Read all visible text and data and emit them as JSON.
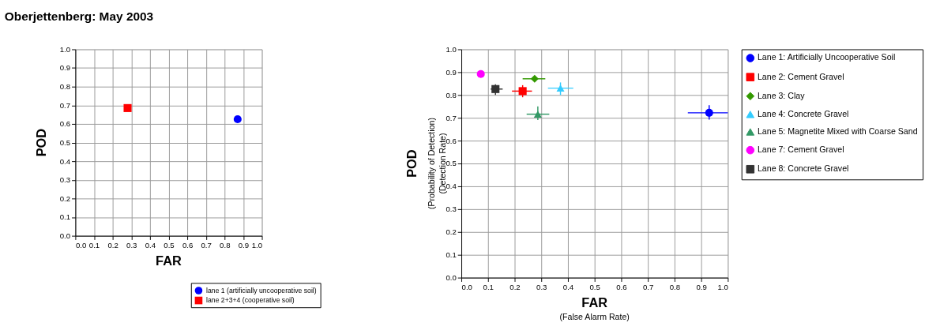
{
  "chart_data": [
    {
      "type": "scatter",
      "title": "Oberjettenberg: May 2003",
      "xlabel": "FAR",
      "ylabel": "POD",
      "xlim": [
        0,
        1
      ],
      "ylim": [
        0,
        1
      ],
      "xticks": [
        {
          "value": 0,
          "label": "0.0"
        },
        0.1,
        0.2,
        0.3,
        0.4,
        0.5,
        0.6,
        0.7,
        0.8,
        0.9,
        {
          "value": 1,
          "label": "1.0"
        }
      ],
      "yticks": [
        {
          "value": 0,
          "label": "0.0"
        },
        0.1,
        0.2,
        0.3,
        0.4,
        0.5,
        0.6,
        0.7,
        0.8,
        0.9,
        {
          "value": 1,
          "label": "1.0"
        }
      ],
      "grid": true,
      "legend": "bottom right",
      "series": [
        {
          "name": "lane 1 (artificially uncooperative soil)",
          "color": "#0000ff",
          "marker": "circle",
          "x": [
            0.87
          ],
          "values": [
            0.625
          ]
        },
        {
          "name": "lane 2+3+4 (cooperative soil)",
          "color": "#ff0000",
          "marker": "square",
          "x": [
            0.28
          ],
          "values": [
            0.685
          ]
        }
      ]
    },
    {
      "type": "scatter",
      "xlabel": "FAR\n(False Alarm Rate)",
      "ylabel": "POD\n(Probability of Detection)\n(Detection Rate)",
      "xlim": [
        0,
        1
      ],
      "ylim": [
        0,
        1
      ],
      "xticks": [
        {
          "value": 0,
          "label": "0.0"
        },
        0.1,
        0.2,
        0.3,
        0.4,
        0.5,
        0.6,
        0.7,
        0.8,
        0.9,
        {
          "value": 1,
          "label": "1.0"
        }
      ],
      "yticks": [
        {
          "value": 0,
          "label": "0.0"
        },
        0.1,
        0.2,
        0.3,
        0.4,
        0.5,
        0.6,
        0.7,
        0.8,
        0.9,
        {
          "value": 1,
          "label": "1.0"
        }
      ],
      "grid": true,
      "legend": "right",
      "series": [
        {
          "name": "Lane 1: Artificially Uncooperative Soil",
          "color": "#0000ff",
          "marker": "circle",
          "x": [
            0.93
          ],
          "values": [
            0.722
          ],
          "errors": [
            [
              0.692,
              0.755
            ]
          ],
          "xerrors": [
            [
              0.85,
              1.0
            ]
          ]
        },
        {
          "name": "Lane 2: Cement Gravel",
          "color": "#ff0000",
          "marker": "square",
          "x": [
            0.23
          ],
          "values": [
            0.817
          ],
          "errors": [
            [
              0.79,
              0.843
            ]
          ],
          "xerrors": [
            [
              0.19,
              0.265
            ]
          ]
        },
        {
          "name": "Lane 3: Clay",
          "color": "#339900",
          "marker": "diamond",
          "x": [
            0.275
          ],
          "values": [
            0.871
          ],
          "xerrors": [
            [
              0.23,
              0.315
            ]
          ]
        },
        {
          "name": "Lane 4: Concrete Gravel",
          "color": "#33ccff",
          "marker": "triangle",
          "x": [
            0.372
          ],
          "values": [
            0.83
          ],
          "errors": [
            [
              0.8,
              0.855
            ]
          ],
          "xerrors": [
            [
              0.325,
              0.42
            ]
          ]
        },
        {
          "name": "Lane 5: Magnetite Mixed with Coarse Sand",
          "color": "#339966",
          "marker": "triangle",
          "x": [
            0.287
          ],
          "values": [
            0.716
          ],
          "errors": [
            [
              0.69,
              0.75
            ]
          ],
          "xerrors": [
            [
              0.245,
              0.33
            ]
          ]
        },
        {
          "name": "Lane 7: Cement Gravel",
          "color": "#ff00ff",
          "marker": "circle",
          "x": [
            0.073
          ],
          "values": [
            0.892
          ]
        },
        {
          "name": "Lane 8: Concrete Gravel",
          "color": "#333333",
          "marker": "square",
          "x": [
            0.128
          ],
          "values": [
            0.826
          ],
          "errors": [
            [
              0.8,
              0.847
            ]
          ],
          "xerrors": [
            [
              0.11,
              0.155
            ]
          ]
        }
      ]
    }
  ]
}
